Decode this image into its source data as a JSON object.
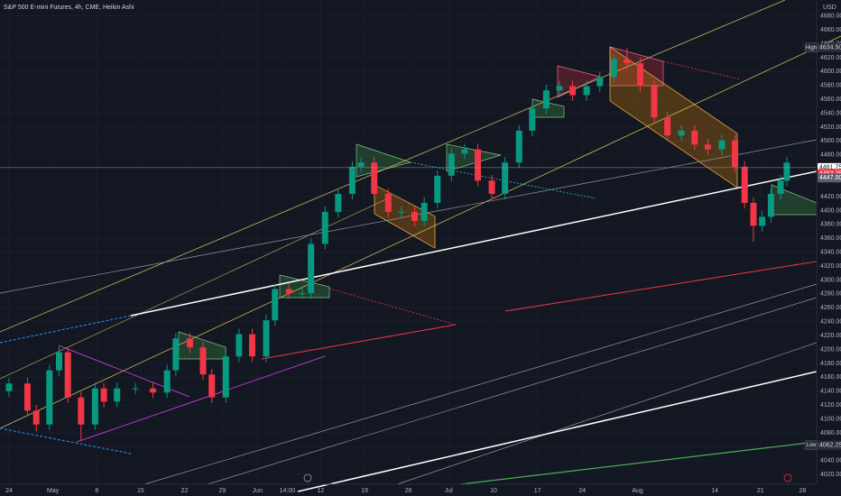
{
  "chart_data": {
    "type": "candlestick",
    "title": "S&P 500 E-mini Futures, 4h, CME, Heikin Ashi",
    "currency": "USD",
    "up_color": "#089981",
    "down_color": "#f23645",
    "x": [
      0,
      2.1,
      3.1,
      4.6,
      5.7,
      6.7,
      8.2,
      9.8,
      10.8,
      12.3,
      14.4,
      16.4,
      18.0,
      19.0,
      20.6,
      22.1,
      23.1,
      24.7,
      26.2,
      27.7,
      29.3,
      30.3,
      31.9,
      33.4,
      34.4,
      36.0,
      37.5,
      39.1,
      40.1,
      41.6,
      43.2,
      44.7,
      46.2,
      47.3,
      48.8,
      50.4,
      51.9,
      53.4,
      55.0,
      56.5,
      58.1,
      59.6,
      61.2,
      62.7,
      64.2,
      65.8,
      67.3,
      68.9,
      70.4,
      71.9,
      73.5,
      75.0,
      76.6,
      78.1,
      79.6,
      81.2,
      82.7,
      83.8,
      84.8,
      85.8,
      86.8,
      87.9,
      88.6
    ],
    "open": [
      4140,
      4151,
      4112,
      4092,
      4170,
      4196,
      4131,
      4092,
      4144,
      4125,
      4144,
      4144,
      4138,
      4170,
      4216,
      4203,
      4164,
      4131,
      4190,
      4222,
      4190,
      4242,
      4287,
      4281,
      4281,
      4352,
      4398,
      4424,
      4463,
      4469,
      4424,
      4398,
      4398,
      4385,
      4411,
      4450,
      4482,
      4488,
      4443,
      4424,
      4469,
      4515,
      4547,
      4573,
      4579,
      4566,
      4579,
      4592,
      4618,
      4612,
      4579,
      4534,
      4508,
      4515,
      4495,
      4488,
      4501,
      4463,
      4411,
      4378,
      4391,
      4424,
      4443
    ],
    "high": [
      4159,
      4159,
      4120,
      4178,
      4204,
      4204,
      4139,
      4152,
      4152,
      4152,
      4152,
      4152,
      4178,
      4224,
      4224,
      4211,
      4172,
      4198,
      4230,
      4230,
      4250,
      4295,
      4295,
      4289,
      4360,
      4406,
      4432,
      4471,
      4477,
      4477,
      4432,
      4406,
      4406,
      4419,
      4458,
      4490,
      4496,
      4496,
      4451,
      4477,
      4523,
      4555,
      4581,
      4587,
      4587,
      4587,
      4600,
      4626,
      4634.5,
      4620,
      4587,
      4542,
      4523,
      4523,
      4503,
      4509,
      4509,
      4471,
      4419,
      4399,
      4432,
      4451,
      4477
    ],
    "low": [
      4132,
      4104,
      4082,
      4084,
      4162,
      4123,
      4069,
      4084,
      4117,
      4117,
      4136,
      4130,
      4130,
      4162,
      4195,
      4156,
      4123,
      4123,
      4182,
      4182,
      4182,
      4234,
      4273,
      4273,
      4273,
      4344,
      4390,
      4416,
      4455,
      4416,
      4390,
      4390,
      4377,
      4377,
      4403,
      4442,
      4474,
      4435,
      4416,
      4416,
      4461,
      4507,
      4539,
      4565,
      4558,
      4558,
      4571,
      4584,
      4604,
      4571,
      4526,
      4500,
      4500,
      4487,
      4480,
      4480,
      4455,
      4403,
      4355,
      4370,
      4383,
      4416,
      4435
    ],
    "close": [
      4151,
      4112,
      4092,
      4170,
      4196,
      4131,
      4092,
      4144,
      4125,
      4144,
      4144,
      4138,
      4170,
      4216,
      4203,
      4164,
      4131,
      4190,
      4222,
      4190,
      4242,
      4287,
      4281,
      4281,
      4352,
      4398,
      4424,
      4463,
      4469,
      4424,
      4398,
      4398,
      4385,
      4411,
      4450,
      4482,
      4488,
      4443,
      4424,
      4469,
      4515,
      4547,
      4573,
      4579,
      4566,
      4579,
      4592,
      4618,
      4612,
      4579,
      4534,
      4508,
      4515,
      4495,
      4488,
      4501,
      4463,
      4411,
      4378,
      4391,
      4424,
      4443,
      4469
    ],
    "xlim": [
      -1.03,
      92
    ],
    "xticks": [
      {
        "value": 0,
        "label": "24"
      },
      {
        "value": 5,
        "label": "May"
      },
      {
        "value": 10,
        "label": "8"
      },
      {
        "value": 15,
        "label": "15"
      },
      {
        "value": 20,
        "label": "22"
      },
      {
        "value": 24.3,
        "label": "29"
      },
      {
        "value": 28.3,
        "label": "Jun"
      },
      {
        "value": 31.7,
        "label": "14:00"
      },
      {
        "value": 35.5,
        "label": "12"
      },
      {
        "value": 40.5,
        "label": "19"
      },
      {
        "value": 45.5,
        "label": "26"
      },
      {
        "value": 50.1,
        "label": "Jul"
      },
      {
        "value": 55.2,
        "label": "10"
      },
      {
        "value": 60.2,
        "label": "17"
      },
      {
        "value": 65.3,
        "label": "24"
      },
      {
        "value": 71.6,
        "label": "Aug"
      },
      {
        "value": 80.4,
        "label": "14"
      },
      {
        "value": 85.6,
        "label": "21"
      },
      {
        "value": 90.4,
        "label": "28"
      }
    ],
    "ylim": [
      4006,
      4703
    ],
    "yticks": [
      {
        "value": 4020,
        "label": "4020.00"
      },
      {
        "value": 4040,
        "label": "4040.00"
      },
      {
        "value": 4060,
        "label": "4060.00"
      },
      {
        "value": 4080,
        "label": "4080.00"
      },
      {
        "value": 4100,
        "label": "4100.00"
      },
      {
        "value": 4120,
        "label": "4120.00"
      },
      {
        "value": 4140,
        "label": "4140.00"
      },
      {
        "value": 4160,
        "label": "4160.00"
      },
      {
        "value": 4180,
        "label": "4180.00"
      },
      {
        "value": 4200,
        "label": "4200.00"
      },
      {
        "value": 4220,
        "label": "4220.00"
      },
      {
        "value": 4240,
        "label": "4240.00"
      },
      {
        "value": 4260,
        "label": "4260.00"
      },
      {
        "value": 4280,
        "label": "4280.00"
      },
      {
        "value": 4300,
        "label": "4300.00"
      },
      {
        "value": 4320,
        "label": "4320.00"
      },
      {
        "value": 4340,
        "label": "4340.00"
      },
      {
        "value": 4360,
        "label": "4360.00"
      },
      {
        "value": 4380,
        "label": "4380.00"
      },
      {
        "value": 4400,
        "label": "4400.00"
      },
      {
        "value": 4420,
        "label": "4420.00"
      },
      {
        "value": 4480,
        "label": "4480.00"
      },
      {
        "value": 4500,
        "label": "4500.00"
      },
      {
        "value": 4520,
        "label": "4520.00"
      },
      {
        "value": 4540,
        "label": "4540.00"
      },
      {
        "value": 4560,
        "label": "4560.00"
      },
      {
        "value": 4580,
        "label": "4580.00"
      },
      {
        "value": 4600,
        "label": "4600.00"
      },
      {
        "value": 4620,
        "label": "4620.00"
      },
      {
        "value": 4640,
        "label": "4640.00"
      },
      {
        "value": 4660,
        "label": "4660.00"
      },
      {
        "value": 4680,
        "label": "4680.00"
      }
    ],
    "price_labels": [
      {
        "value": 4634.5,
        "label": "4634.50",
        "tag": "High",
        "color": "#2a2e39",
        "text_color": "#d1d4dc"
      },
      {
        "value": 4461.75,
        "label": "4461.75",
        "color": "#ffffff",
        "text_color": "#131722"
      },
      {
        "value": 4453.25,
        "label": "4453.25",
        "color": "#f23645",
        "text_color": "#ffffff"
      },
      {
        "value": 4447,
        "label": "4447.00",
        "color": "#5d606b",
        "text_color": "#ffffff"
      },
      {
        "value": 4062.25,
        "label": "4062.25",
        "tag": "Low",
        "color": "#2a2e39",
        "text_color": "#d1d4dc"
      }
    ],
    "countdown": "16:15"
  }
}
